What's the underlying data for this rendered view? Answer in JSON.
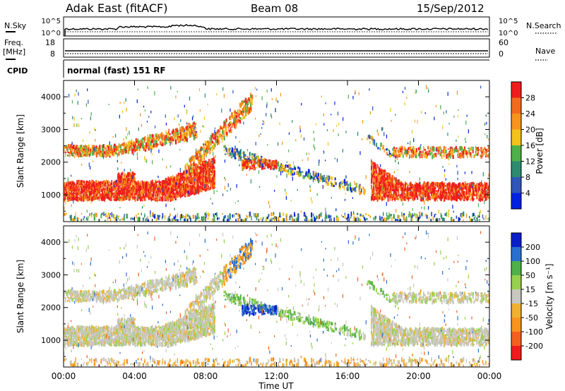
{
  "header": {
    "radar": "Adak East (fitACF)",
    "beam": "Beam 08",
    "date": "15/Sep/2012"
  },
  "panels": {
    "nsky": {
      "label": "N.Sky",
      "ticks": [
        "10^5",
        "10^0"
      ],
      "right_label": "N.Search",
      "right_ticks": [
        "10^5",
        "10^0"
      ]
    },
    "freq": {
      "label_top": "Freq.",
      "label_unit": "[MHz]",
      "ticks": [
        "18",
        "8"
      ],
      "right_label": "Nave",
      "right_ticks": [
        "60",
        "0"
      ]
    },
    "cpid": {
      "label": "CPID",
      "text": "normal (fast) 151 RF"
    }
  },
  "colors": {
    "power": [
      "#0022e0",
      "#2f56b8",
      "#2e8a6e",
      "#4fb04a",
      "#f3c21b",
      "#f7941d",
      "#f26b1d",
      "#ef1c1c"
    ],
    "velocity": [
      "#ef1c1c",
      "#f36020",
      "#f7941d",
      "#f0b132",
      "#c8c8c0",
      "#97d04c",
      "#4fb04a",
      "#2a6fd0",
      "#0a1ec8"
    ]
  },
  "chart_data": [
    {
      "type": "heatmap",
      "name": "power",
      "ylabel": "Slant Range [km]",
      "yticks": [
        "1000",
        "2000",
        "3000",
        "4000"
      ],
      "ylim": [
        180,
        4500
      ],
      "xlim": [
        0,
        24
      ],
      "colorbar_label": "Power [dB]",
      "colorbar_ticks": [
        "28",
        "24",
        "20",
        "16",
        "12",
        "8",
        "4"
      ],
      "colorbar_range": [
        0,
        32
      ]
    },
    {
      "type": "heatmap",
      "name": "velocity",
      "ylabel": "Slant Range [km]",
      "yticks": [
        "1000",
        "2000",
        "3000",
        "4000"
      ],
      "ylim": [
        180,
        4500
      ],
      "xlim": [
        0,
        24
      ],
      "colorbar_label": "Velocity [m s⁻¹]",
      "colorbar_ticks": [
        "200",
        "100",
        "50",
        "15",
        "-15",
        "-50",
        "-100",
        "-200"
      ]
    }
  ],
  "xaxis": {
    "ticks": [
      "00:00",
      "04:00",
      "08:00",
      "12:00",
      "16:00",
      "20:00",
      "00:00"
    ],
    "label": "Time UT"
  }
}
